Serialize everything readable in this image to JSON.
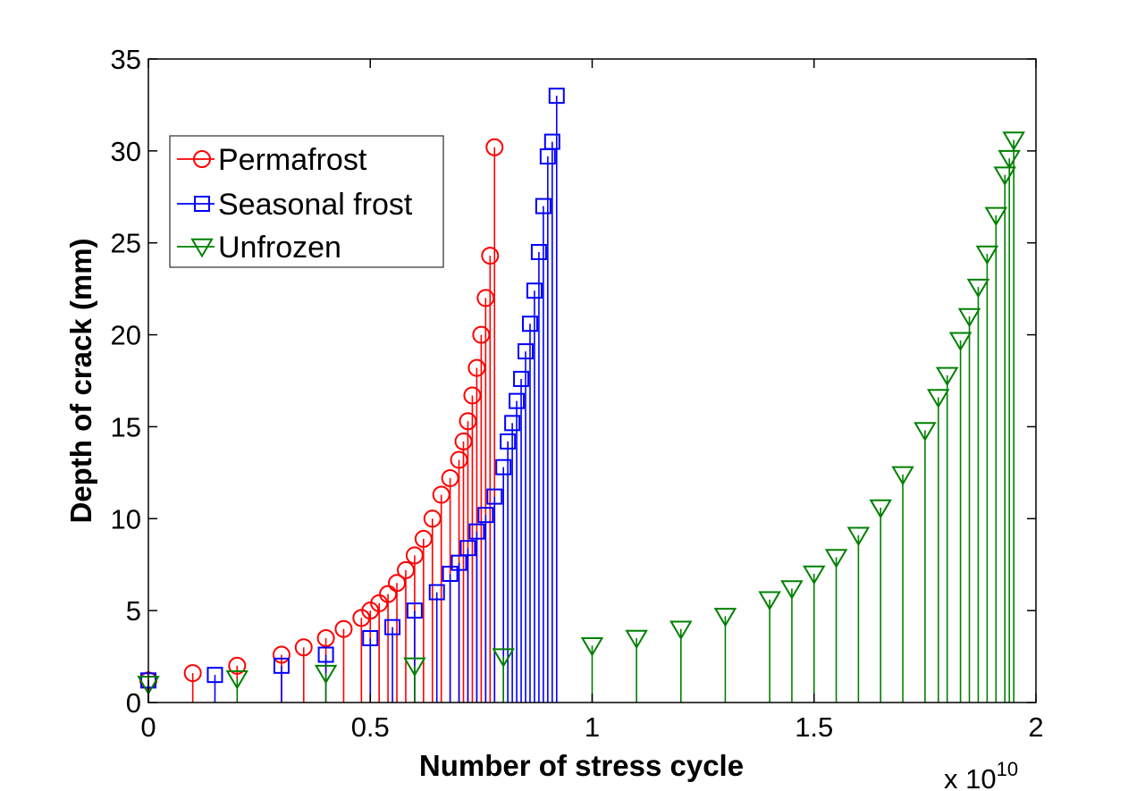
{
  "chart_data": {
    "type": "stem",
    "title": "",
    "xlabel": "Number of stress cycle",
    "ylabel": "Depth of crack (mm)",
    "x_exponent_label": "x 10",
    "x_exponent_power": "10",
    "xlim": [
      0,
      2
    ],
    "ylim": [
      0,
      35
    ],
    "xticks": [
      0,
      0.5,
      1,
      1.5,
      2
    ],
    "xtick_labels": [
      "0",
      "0.5",
      "1",
      "1.5",
      "2"
    ],
    "yticks": [
      0,
      5,
      10,
      15,
      20,
      25,
      30,
      35
    ],
    "ytick_labels": [
      "0",
      "5",
      "10",
      "15",
      "20",
      "25",
      "30",
      "35"
    ],
    "grid": false,
    "legend_position": "top-left",
    "series": [
      {
        "name": "Permafrost",
        "color": "#ff0000",
        "marker": "circle",
        "x": [
          0.0,
          0.1,
          0.2,
          0.3,
          0.35,
          0.4,
          0.44,
          0.48,
          0.5,
          0.52,
          0.54,
          0.56,
          0.58,
          0.6,
          0.62,
          0.64,
          0.66,
          0.68,
          0.7,
          0.71,
          0.72,
          0.73,
          0.74,
          0.75,
          0.76,
          0.77,
          0.78
        ],
        "y": [
          1.2,
          1.6,
          2.0,
          2.6,
          3.0,
          3.5,
          4.0,
          4.6,
          5.0,
          5.4,
          5.9,
          6.5,
          7.2,
          8.0,
          8.9,
          10.0,
          11.3,
          12.2,
          13.2,
          14.2,
          15.3,
          16.7,
          18.2,
          20.0,
          22.0,
          24.3,
          30.2
        ]
      },
      {
        "name": "Seasonal frost",
        "color": "#0000ff",
        "marker": "square",
        "x": [
          0.0,
          0.15,
          0.3,
          0.4,
          0.5,
          0.55,
          0.6,
          0.65,
          0.68,
          0.7,
          0.72,
          0.74,
          0.76,
          0.78,
          0.8,
          0.81,
          0.82,
          0.83,
          0.84,
          0.85,
          0.86,
          0.87,
          0.88,
          0.89,
          0.9,
          0.91,
          0.92
        ],
        "y": [
          1.2,
          1.5,
          2.0,
          2.6,
          3.5,
          4.1,
          5.0,
          6.0,
          7.0,
          7.6,
          8.4,
          9.3,
          10.2,
          11.2,
          12.8,
          14.2,
          15.2,
          16.4,
          17.6,
          19.1,
          20.6,
          22.4,
          24.5,
          27.0,
          29.7,
          30.5,
          33.0
        ]
      },
      {
        "name": "Unfrozen",
        "color": "#008000",
        "marker": "triangle-down",
        "x": [
          0.0,
          0.2,
          0.4,
          0.6,
          0.8,
          1.0,
          1.1,
          1.2,
          1.3,
          1.4,
          1.45,
          1.5,
          1.55,
          1.6,
          1.65,
          1.7,
          1.75,
          1.78,
          1.8,
          1.83,
          1.85,
          1.87,
          1.89,
          1.91,
          1.93,
          1.94,
          1.95
        ],
        "y": [
          1.0,
          1.3,
          1.6,
          2.0,
          2.5,
          3.1,
          3.5,
          4.0,
          4.7,
          5.6,
          6.2,
          7.0,
          7.9,
          9.1,
          10.6,
          12.4,
          14.8,
          16.6,
          17.8,
          19.7,
          21.0,
          22.6,
          24.4,
          26.5,
          28.7,
          29.6,
          30.6
        ]
      }
    ]
  }
}
